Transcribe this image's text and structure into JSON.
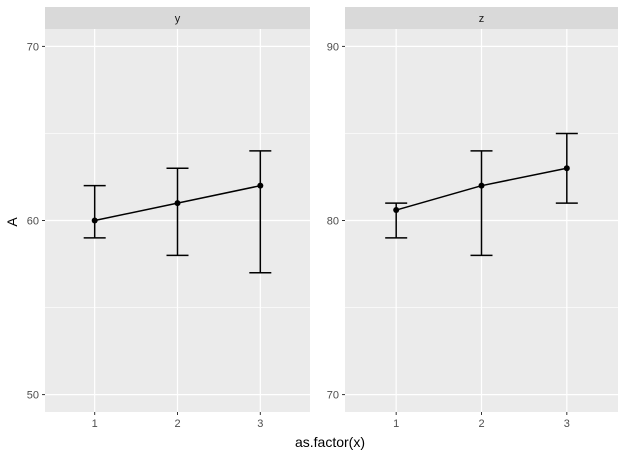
{
  "chart_data": {
    "type": "line",
    "xlabel": "as.factor(x)",
    "ylabel": "A",
    "grid": true,
    "panels": [
      {
        "strip": "y",
        "categories": [
          "1",
          "2",
          "3"
        ],
        "values": [
          60,
          61,
          62
        ],
        "ymin": [
          59,
          58,
          57
        ],
        "ymax": [
          62,
          63,
          64
        ],
        "ylim": [
          49,
          71
        ],
        "yticks": [
          50,
          60,
          70
        ],
        "ytick_labels": [
          "50",
          "60",
          "70"
        ]
      },
      {
        "strip": "z",
        "categories": [
          "1",
          "2",
          "3"
        ],
        "values": [
          80.6,
          82,
          83
        ],
        "ymin": [
          79,
          78,
          81
        ],
        "ymax": [
          81,
          84,
          85
        ],
        "ylim": [
          69,
          91
        ],
        "yticks": [
          70,
          80,
          90
        ],
        "ytick_labels": [
          "70",
          "80",
          "90"
        ]
      }
    ],
    "colors": {
      "panel_bg": "#ebebeb",
      "strip_bg": "#d9d9d9",
      "grid": "#ffffff",
      "line": "#000000"
    }
  }
}
